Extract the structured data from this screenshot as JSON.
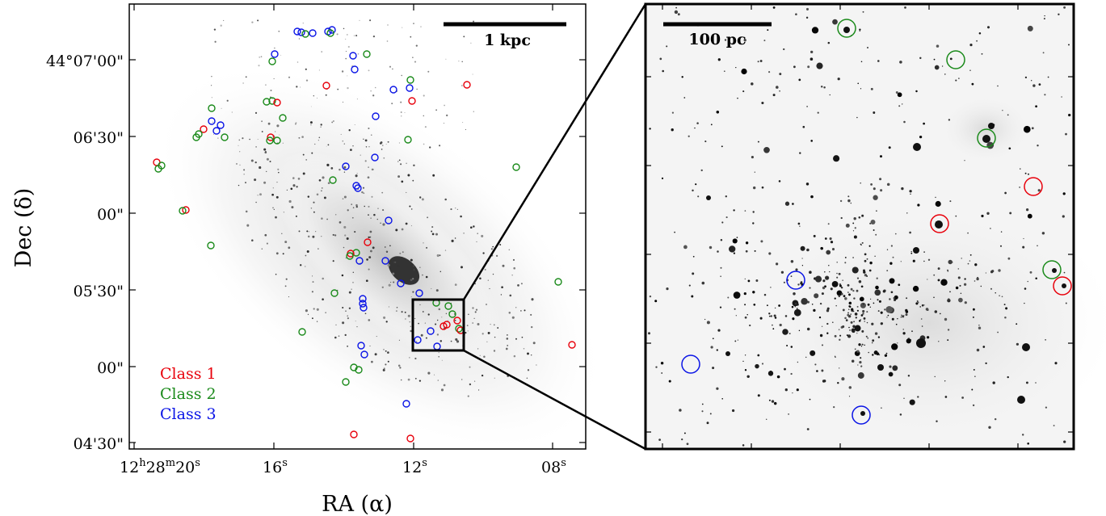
{
  "left_panel": {
    "scale_bar_label": "1 kpc",
    "x_ticks": [
      {
        "main": "12",
        "sup1": "h",
        "mid": "28",
        "sup2": "m",
        "last": "20",
        "sup3": "s"
      },
      {
        "main": "16",
        "sup": "s"
      },
      {
        "main": "12",
        "sup": "s"
      },
      {
        "main": "08",
        "sup": "s"
      }
    ],
    "y_ticks": [
      "44°07'00\"",
      "06'30\"",
      "00\"",
      "05'30\"",
      "00\"",
      "04'30\""
    ],
    "x_label": "RA (α)",
    "y_label": "Dec (δ)",
    "legend": [
      {
        "label": "Class 1",
        "color": "#e8000b"
      },
      {
        "label": "Class 2",
        "color": "#1a8a1a"
      },
      {
        "label": "Class 3",
        "color": "#0a14e6"
      }
    ]
  },
  "right_panel": {
    "scale_bar_label": "100 pc"
  },
  "colors": {
    "class1": "#e8000b",
    "class2": "#1a8a1a",
    "class3": "#0a14e6",
    "frame": "#000000"
  }
}
